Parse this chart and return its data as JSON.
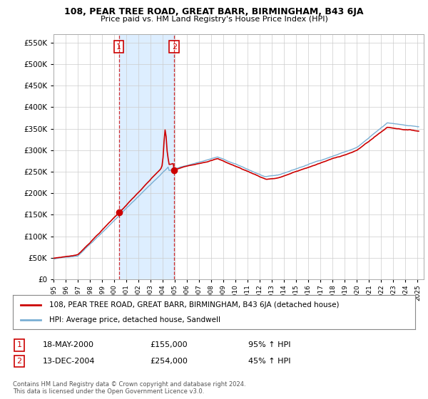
{
  "title": "108, PEAR TREE ROAD, GREAT BARR, BIRMINGHAM, B43 6JA",
  "subtitle": "Price paid vs. HM Land Registry's House Price Index (HPI)",
  "ylim": [
    0,
    570000
  ],
  "yticks": [
    0,
    50000,
    100000,
    150000,
    200000,
    250000,
    300000,
    350000,
    400000,
    450000,
    500000,
    550000
  ],
  "xlim_start": 1995.0,
  "xlim_end": 2025.5,
  "sale1_date": 2000.38,
  "sale1_price": 155000,
  "sale2_date": 2004.95,
  "sale2_price": 254000,
  "legend_line1": "108, PEAR TREE ROAD, GREAT BARR, BIRMINGHAM, B43 6JA (detached house)",
  "legend_line2": "HPI: Average price, detached house, Sandwell",
  "footer": "Contains HM Land Registry data © Crown copyright and database right 2024.\nThis data is licensed under the Open Government Licence v3.0.",
  "property_color": "#cc0000",
  "hpi_color": "#7aafd4",
  "shade_color": "#ddeeff",
  "grid_color": "#cccccc",
  "background_color": "#ffffff"
}
